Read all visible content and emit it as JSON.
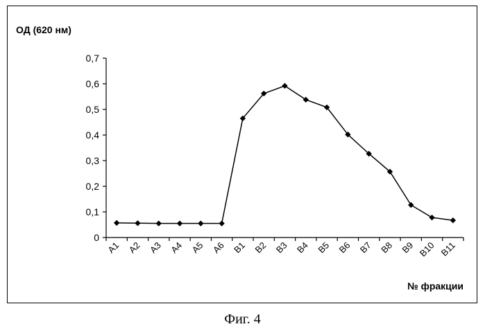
{
  "chart_data": {
    "type": "line",
    "title": "",
    "ylabel": "ОД (620 нм)",
    "xlabel": "№ фракции",
    "categories": [
      "A1",
      "A2",
      "A3",
      "A4",
      "A5",
      "A6",
      "B1",
      "B2",
      "B3",
      "B4",
      "B5",
      "B6",
      "B7",
      "B8",
      "B9",
      "B10",
      "B11"
    ],
    "series": [
      {
        "values": [
          0.057,
          0.056,
          0.055,
          0.055,
          0.055,
          0.055,
          0.465,
          0.562,
          0.592,
          0.538,
          0.508,
          0.402,
          0.327,
          0.257,
          0.127,
          0.078,
          0.067
        ]
      }
    ],
    "ylim": [
      0,
      0.7
    ],
    "yticks": [
      0,
      0.1,
      0.2,
      0.3,
      0.4,
      0.5,
      0.6,
      0.7
    ],
    "ytick_labels": [
      "0",
      "0,1",
      "0,2",
      "0,3",
      "0,4",
      "0,5",
      "0,6",
      "0,7"
    ],
    "grid": false,
    "legend": "none",
    "line_color": "#000000",
    "marker": "diamond"
  },
  "caption": "Фиг. 4"
}
